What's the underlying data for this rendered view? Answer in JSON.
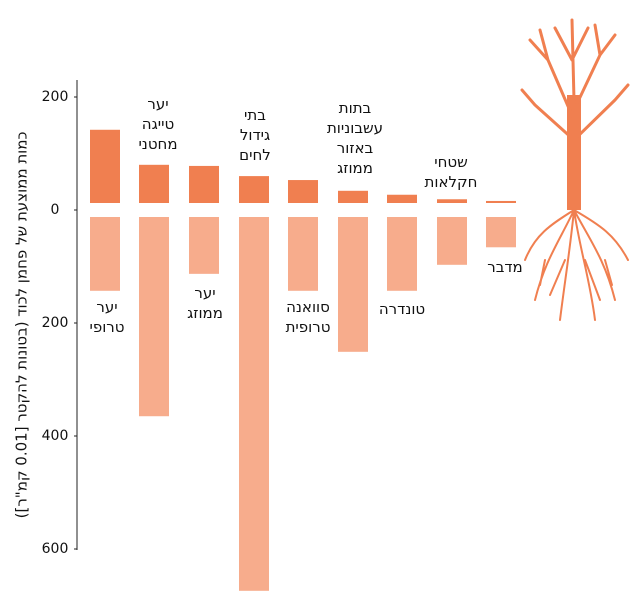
{
  "chart_data": {
    "type": "diverging-bar",
    "y_axis_label": "כמות ממוצעת של פחמן לכוד (בטונות להקטר [0.01 קמ\"ר])",
    "categories": [
      "יער\nטרופי",
      "יער\nטייגה\nמחטני",
      "יער\nממוזג",
      "בתי\nגידול\nלחים",
      "סוואנה\nטרופית",
      "בתות\nעשבוניות\nבאזור\nממוזג",
      "טונדרה",
      "שטחי\nחקלאות",
      "מדבר"
    ],
    "series": [
      {
        "color": "#f07f50",
        "values": [
          142,
          80,
          78,
          60,
          53,
          34,
          27,
          19,
          16
        ]
      },
      {
        "color": "#f7ac8c",
        "values": [
          -143,
          -365,
          -113,
          -674,
          -143,
          -251,
          -143,
          -97,
          -66
        ]
      }
    ],
    "ylim": [
      -680,
      230
    ],
    "yticks": [
      {
        "value": -600,
        "label": "600"
      },
      {
        "value": -400,
        "label": "400"
      },
      {
        "value": -200,
        "label": "200"
      },
      0,
      200
    ]
  }
}
